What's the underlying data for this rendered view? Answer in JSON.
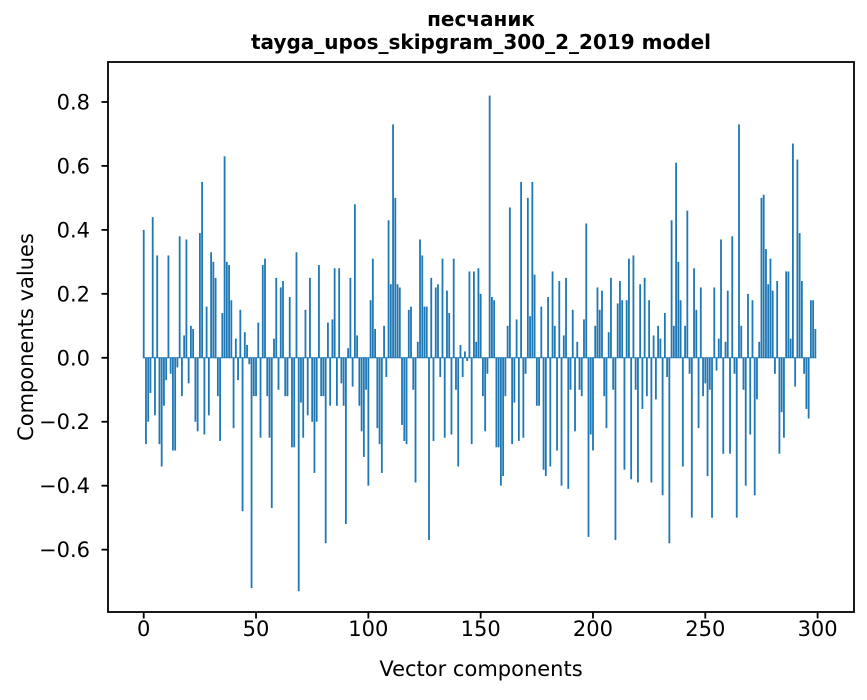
{
  "figure": {
    "title": "песчаник",
    "subtitle": "tayga_upos_skipgram_300_2_2019 model"
  },
  "chart_data": {
    "type": "bar",
    "title": "песчаник",
    "subtitle": "tayga_upos_skipgram_300_2_2019 model",
    "xlabel": "Vector components",
    "ylabel": "Components values",
    "x_start": 0,
    "n_components": 300,
    "xlim": [
      -15.9,
      316.2
    ],
    "ylim": [
      -0.795,
      0.925
    ],
    "xticks": [
      0,
      50,
      100,
      150,
      200,
      250,
      300
    ],
    "xtick_labels": [
      "0",
      "50",
      "100",
      "150",
      "200",
      "250",
      "300"
    ],
    "yticks": [
      0.8,
      0.6,
      0.4,
      0.2,
      0.0,
      -0.2,
      -0.4,
      -0.6
    ],
    "ytick_labels": [
      "0.8",
      "0.6",
      "0.4",
      "0.2",
      "0.0",
      "−0.2",
      "−0.4",
      "−0.6"
    ],
    "grid": false,
    "legend": null,
    "bar_color": "#1f77b4",
    "bar_width": 0.8,
    "values": [
      0.4,
      -0.27,
      -0.2,
      -0.11,
      0.44,
      -0.18,
      0.32,
      -0.27,
      -0.34,
      -0.15,
      -0.07,
      0.32,
      -0.05,
      -0.29,
      -0.29,
      -0.03,
      0.38,
      -0.12,
      0.07,
      0.37,
      -0.08,
      0.1,
      0.09,
      -0.2,
      -0.23,
      0.39,
      0.55,
      -0.24,
      0.16,
      -0.18,
      0.33,
      0.3,
      0.25,
      -0.12,
      -0.26,
      0.14,
      0.63,
      0.3,
      0.29,
      0.18,
      -0.22,
      0.06,
      -0.07,
      0.15,
      -0.48,
      0.08,
      0.04,
      -0.02,
      -0.72,
      -0.12,
      -0.12,
      0.11,
      -0.25,
      0.29,
      0.31,
      -0.12,
      -0.25,
      -0.47,
      0.06,
      0.25,
      -0.1,
      0.22,
      0.24,
      -0.12,
      -0.12,
      0.19,
      -0.28,
      -0.28,
      0.33,
      -0.73,
      -0.14,
      -0.25,
      0.15,
      -0.18,
      0.25,
      -0.2,
      -0.36,
      -0.2,
      0.29,
      -0.12,
      -0.12,
      -0.58,
      0.11,
      -0.15,
      0.12,
      0.28,
      -0.15,
      0.28,
      -0.08,
      -0.15,
      -0.52,
      0.03,
      0.25,
      -0.09,
      0.48,
      0.07,
      -0.15,
      -0.23,
      -0.31,
      -0.1,
      -0.4,
      0.18,
      0.31,
      0.09,
      -0.22,
      -0.27,
      -0.36,
      0.1,
      -0.06,
      0.43,
      0.23,
      0.73,
      0.5,
      0.23,
      0.22,
      -0.21,
      -0.26,
      -0.27,
      0.15,
      0.16,
      -0.1,
      -0.39,
      0.05,
      0.37,
      0.32,
      0.16,
      0.16,
      -0.57,
      0.25,
      -0.26,
      0.22,
      0.23,
      -0.06,
      0.31,
      -0.25,
      0.21,
      0.14,
      -0.24,
      0.31,
      -0.1,
      -0.34,
      0.04,
      -0.06,
      0.02,
      -0.01,
      0.27,
      -0.27,
      0.27,
      0.05,
      0.28,
      0.2,
      -0.12,
      -0.23,
      -0.05,
      0.82,
      0.19,
      0.18,
      -0.28,
      -0.28,
      -0.4,
      -0.37,
      -0.12,
      0.1,
      0.47,
      -0.27,
      -0.14,
      0.12,
      -0.26,
      0.55,
      -0.25,
      -0.05,
      0.5,
      0.13,
      0.55,
      0.26,
      -0.15,
      -0.15,
      0.16,
      -0.35,
      -0.37,
      0.19,
      -0.34,
      0.27,
      0.1,
      -0.29,
      0.24,
      -0.4,
      0.07,
      0.25,
      -0.41,
      -0.1,
      0.15,
      -0.23,
      0.05,
      -0.1,
      -0.12,
      0.12,
      0.42,
      -0.56,
      -0.24,
      -0.29,
      0.1,
      0.22,
      0.15,
      0.21,
      -0.12,
      -0.22,
      0.08,
      0.25,
      -0.1,
      -0.57,
      0.17,
      0.24,
      0.18,
      -0.35,
      0.18,
      0.31,
      -0.38,
      0.32,
      -0.1,
      -0.39,
      0.23,
      -0.16,
      0.25,
      -0.12,
      0.18,
      -0.39,
      0.07,
      -0.13,
      0.1,
      0.06,
      -0.43,
      0.14,
      -0.06,
      -0.58,
      0.43,
      0.1,
      0.61,
      0.3,
      0.18,
      -0.34,
      0.1,
      0.46,
      -0.05,
      -0.5,
      0.28,
      0.15,
      -0.22,
      0.22,
      -0.12,
      -0.08,
      -0.37,
      -0.1,
      -0.5,
      0.22,
      -0.04,
      0.06,
      0.37,
      -0.3,
      0.05,
      0.21,
      -0.3,
      0.38,
      -0.05,
      -0.5,
      0.73,
      0.1,
      -0.1,
      -0.4,
      0.2,
      -0.24,
      0.18,
      -0.43,
      -0.13,
      0.05,
      0.5,
      0.51,
      0.34,
      0.23,
      0.31,
      0.21,
      -0.05,
      0.24,
      -0.3,
      -0.17,
      -0.25,
      0.27,
      0.27,
      0.06,
      0.67,
      -0.09,
      0.62,
      0.39,
      0.24,
      -0.05,
      -0.16,
      -0.19,
      0.18,
      0.18,
      0.09
    ]
  }
}
